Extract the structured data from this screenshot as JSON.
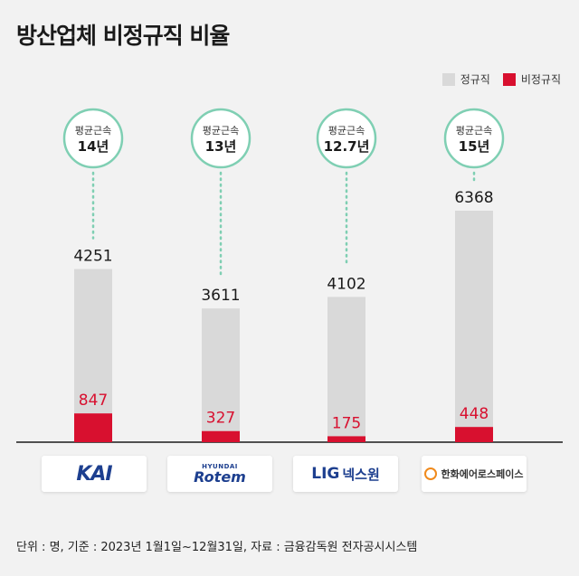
{
  "title": "방산업체 비정규직 비율",
  "legend": [
    {
      "label": "정규직",
      "color": "#d9d9d9"
    },
    {
      "label": "비정규직",
      "color": "#d8102f"
    }
  ],
  "companies": [
    {
      "key": "kai",
      "logo_text": "KAI"
    },
    {
      "key": "rotem",
      "logo_text_small": "HYUNDAI",
      "logo_text": "Rotem"
    },
    {
      "key": "lig",
      "logo_text": "LIG",
      "logo_text_kor": "넥스원"
    },
    {
      "key": "hanwha",
      "logo_text": "한화에어로스페이스"
    }
  ],
  "tenure": [
    {
      "label": "평균근속",
      "value": "14년"
    },
    {
      "label": "평균근속",
      "value": "13년"
    },
    {
      "label": "평균근속",
      "value": "12.7년"
    },
    {
      "label": "평균근속",
      "value": "15년"
    }
  ],
  "chart_data": {
    "type": "bar",
    "categories": [
      "KAI",
      "Hyundai Rotem",
      "LIG넥스원",
      "한화에어로스페이스"
    ],
    "series": [
      {
        "name": "정규직",
        "values": [
          4251,
          3611,
          4102,
          6368
        ],
        "color": "#d9d9d9"
      },
      {
        "name": "비정규직",
        "values": [
          847,
          327,
          175,
          448
        ],
        "color": "#d8102f"
      }
    ],
    "title": "방산업체 비정규직 비율",
    "xlabel": "",
    "ylabel": "",
    "grid": false,
    "legend_position": "top-right"
  },
  "footnote": "단위 : 명, 기준 : 2023년 1월1일~12월31일, 자료 : 금융감독원 전자공시시스템"
}
